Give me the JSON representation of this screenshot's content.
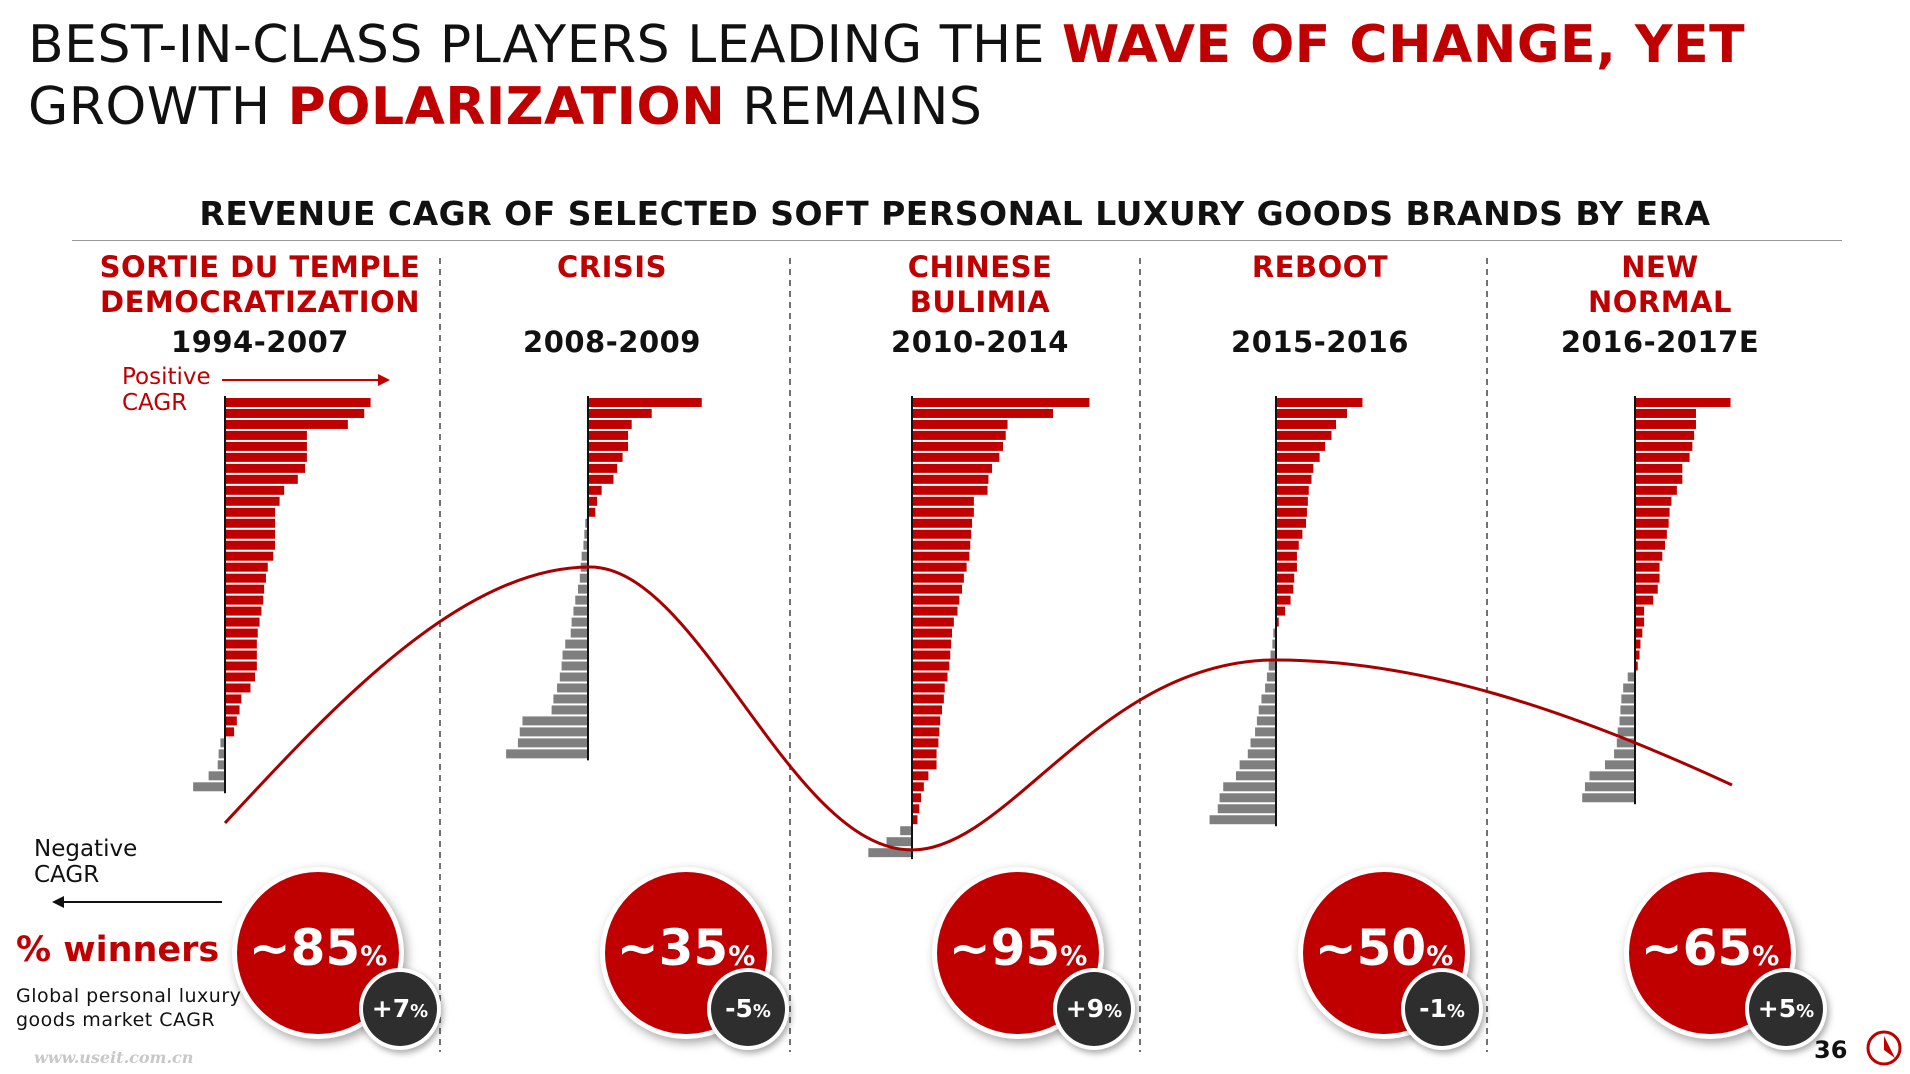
{
  "title": {
    "line1_plain": "BEST-IN-CLASS PLAYERS LEADING THE ",
    "line1_highlight": "WAVE OF CHANGE, YET",
    "line2_plain_a": "GROWTH ",
    "line2_highlight": "POLARIZATION",
    "line2_plain_b": " REMAINS"
  },
  "chart_data": {
    "type": "bar",
    "title": "REVENUE CAGR OF SELECTED SOFT PERSONAL LUXURY GOODS BRANDS BY ERA",
    "positive_label": "Positive\nCAGR",
    "negative_label": "Negative\nCAGR",
    "winners_label": "% winners",
    "market_label": "Global personal luxury\ngoods market CAGR",
    "eras": [
      {
        "name": "SORTIE DU TEMPLE\nDEMOCRATIZATION",
        "years": "1994-2007",
        "winners": "~85",
        "market_cagr": "+7",
        "brand_cagr": [
          16,
          15.3,
          13.5,
          9,
          9,
          9,
          8.8,
          8,
          6.5,
          6,
          5.5,
          5.5,
          5.5,
          5.5,
          5.3,
          4.7,
          4.5,
          4.3,
          4.2,
          4,
          3.8,
          3.6,
          3.5,
          3.5,
          3.5,
          3.3,
          2.8,
          1.8,
          1.6,
          1.3,
          1,
          -0.5,
          -0.7,
          -0.8,
          -1.8,
          -3.5
        ]
      },
      {
        "name": "CRISIS",
        "years": "2008-2009",
        "winners": "~35",
        "market_cagr": "-5",
        "brand_cagr": [
          12.5,
          7,
          4.8,
          4.4,
          4.4,
          3.8,
          3.2,
          2.8,
          1.5,
          1,
          0.8,
          -0.3,
          -0.4,
          -0.5,
          -0.7,
          -0.8,
          -0.9,
          -1.1,
          -1.4,
          -1.6,
          -1.8,
          -1.9,
          -2.5,
          -2.8,
          -2.9,
          -3.1,
          -3.4,
          -3.8,
          -4,
          -7.2,
          -7.5,
          -7.7,
          -9
        ]
      },
      {
        "name": "CHINESE\nBULIMIA",
        "years": "2010-2014",
        "winners": "~95",
        "market_cagr": "+9",
        "brand_cagr": [
          19.5,
          15.5,
          10.5,
          10.3,
          10,
          9.6,
          8.8,
          8.4,
          8.3,
          6.8,
          6.8,
          6.6,
          6.5,
          6.4,
          6.3,
          6,
          5.7,
          5.5,
          5.2,
          5,
          4.6,
          4.4,
          4.3,
          4.2,
          4.1,
          3.9,
          3.6,
          3.5,
          3.3,
          3.1,
          3,
          2.9,
          2.7,
          2.7,
          1.8,
          1.3,
          1,
          0.8,
          0.6,
          -1.3,
          -2.8,
          -4.8
        ]
      },
      {
        "name": "REBOOT",
        "years": "2015-2016",
        "winners": "~50",
        "market_cagr": "-1",
        "brand_cagr": [
          9.5,
          7.8,
          6.6,
          6.1,
          5.4,
          4.8,
          4.1,
          3.9,
          3.6,
          3.5,
          3.4,
          3.3,
          2.9,
          2.5,
          2.3,
          2.3,
          2,
          1.9,
          1.6,
          1,
          0.3,
          -0.3,
          -0.4,
          -0.6,
          -0.8,
          -1,
          -1.2,
          -1.6,
          -1.9,
          -2.1,
          -2.3,
          -2.8,
          -3.1,
          -4,
          -4.4,
          -5.8,
          -6.2,
          -6.4,
          -7.3
        ]
      },
      {
        "name": "NEW\nNORMAL",
        "years": "2016-2017E",
        "winners": "~65",
        "market_cagr": "+5",
        "brand_cagr": [
          10.5,
          6.7,
          6.7,
          6.5,
          6.3,
          6,
          5.2,
          5.2,
          4.6,
          4,
          3.8,
          3.7,
          3.5,
          3.3,
          3,
          2.7,
          2.7,
          2.5,
          2,
          1,
          1,
          0.8,
          0.6,
          0.5,
          0.3,
          -0.8,
          -1.3,
          -1.5,
          -1.6,
          -1.7,
          -1.9,
          -2,
          -2.3,
          -3.3,
          -5,
          -5.5,
          -5.8
        ]
      }
    ]
  },
  "page_number": "36",
  "watermark": "www.useit.com.cn",
  "colors": {
    "accent": "#c00000",
    "negative": "#7f7f7f",
    "badge": "#2e2e2e"
  }
}
